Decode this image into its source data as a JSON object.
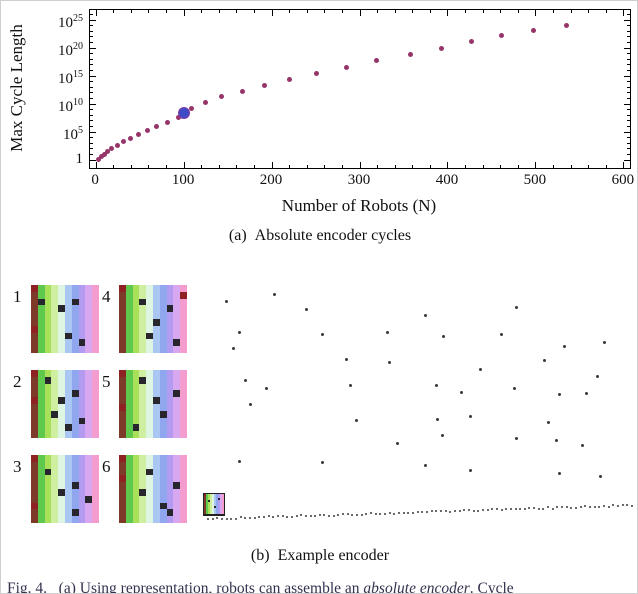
{
  "page": {
    "caption_a": "(a)  Absolute encoder cycles",
    "caption_b": "(b)  Example encoder",
    "fig_caption": {
      "prefix": "Fig. 4.   (a) Using representation, robots can assemble an ",
      "italic": "absolute encoder",
      "suffix": ". Cycle"
    }
  },
  "chart_data": {
    "type": "scatter",
    "title": "",
    "xlabel": "Number of Robots (N)",
    "ylabel": "Max Cycle Length",
    "y_scale": "log10",
    "grid": false,
    "legend": "none",
    "xlim": [
      -7,
      607
    ],
    "ylog_lim": [
      -1.4,
      26.8
    ],
    "x_ticks": [
      0,
      100,
      200,
      300,
      400,
      500,
      600
    ],
    "x_minor_step": 20,
    "y_minor_step": 1,
    "y_ticks": [
      {
        "log": 0,
        "base": "1",
        "exp": ""
      },
      {
        "log": 5,
        "base": "10",
        "exp": "5"
      },
      {
        "log": 10,
        "base": "10",
        "exp": "10"
      },
      {
        "log": 15,
        "base": "10",
        "exp": "15"
      },
      {
        "log": 20,
        "base": "10",
        "exp": "20"
      },
      {
        "log": 25,
        "base": "10",
        "exp": "25"
      }
    ],
    "axis_color": "#000000",
    "point_color": "#963569",
    "highlight_color": "#3d4cc4",
    "highlight_ring": "#8438a8",
    "points": [
      [
        3,
        0.2
      ],
      [
        6,
        0.6
      ],
      [
        9,
        1.05
      ],
      [
        13,
        1.5
      ],
      [
        18,
        2.05
      ],
      [
        24,
        2.65
      ],
      [
        31,
        3.3
      ],
      [
        39,
        3.95
      ],
      [
        48,
        4.65
      ],
      [
        58,
        5.35
      ],
      [
        69,
        6.05
      ],
      [
        81,
        6.8
      ],
      [
        94,
        7.6
      ],
      [
        108,
        9.3
      ],
      [
        124,
        10.3
      ],
      [
        142,
        11.3
      ],
      [
        166,
        12.3
      ],
      [
        191,
        13.3
      ],
      [
        220,
        14.4
      ],
      [
        251,
        15.5
      ],
      [
        285,
        16.6
      ],
      [
        319,
        17.7
      ],
      [
        357,
        18.9
      ],
      [
        393,
        19.9
      ],
      [
        427,
        21.1
      ],
      [
        461,
        22.3
      ],
      [
        497,
        23.1
      ],
      [
        535,
        24.0
      ]
    ],
    "highlight_point": {
      "x": 100,
      "log10_y": 8.4
    }
  },
  "encoder_tiles": {
    "grid_size": 10,
    "palette": [
      "#7e3a28",
      "#5fc94d",
      "#a9e059",
      "#ceefa0",
      "#def5e4",
      "#aac7f3",
      "#90a7ef",
      "#b29bf1",
      "#d7a7ef",
      "#f59ccf"
    ],
    "dark_color": "#26262c",
    "red_color": "#8e2222",
    "tiles": [
      {
        "label": "1",
        "red_cells": [
          [
            0,
            0
          ],
          [
            6,
            0
          ]
        ],
        "dark_cells": [
          [
            2,
            1
          ],
          [
            3,
            4
          ],
          [
            2,
            6
          ],
          [
            7,
            5
          ],
          [
            8,
            7
          ]
        ]
      },
      {
        "label": "2",
        "red_cells": [
          [
            0,
            0
          ],
          [
            4,
            0
          ]
        ],
        "dark_cells": [
          [
            1,
            2
          ],
          [
            4,
            4
          ],
          [
            6,
            3
          ],
          [
            3,
            6
          ],
          [
            7,
            7
          ],
          [
            8,
            5
          ]
        ]
      },
      {
        "label": "3",
        "red_cells": [
          [
            0,
            0
          ],
          [
            7,
            0
          ]
        ],
        "dark_cells": [
          [
            2,
            2
          ],
          [
            5,
            4
          ],
          [
            4,
            6
          ],
          [
            8,
            6
          ],
          [
            6,
            8
          ]
        ]
      },
      {
        "label": "4",
        "red_cells": [
          [
            0,
            0
          ],
          [
            1,
            9
          ]
        ],
        "dark_cells": [
          [
            2,
            3
          ],
          [
            5,
            5
          ],
          [
            3,
            7
          ],
          [
            7,
            4
          ],
          [
            8,
            8
          ]
        ]
      },
      {
        "label": "5",
        "red_cells": [
          [
            0,
            0
          ],
          [
            5,
            0
          ]
        ],
        "dark_cells": [
          [
            1,
            3
          ],
          [
            4,
            5
          ],
          [
            6,
            6
          ],
          [
            3,
            8
          ],
          [
            8,
            2
          ]
        ]
      },
      {
        "label": "6",
        "red_cells": [
          [
            0,
            0
          ],
          [
            3,
            0
          ]
        ],
        "dark_cells": [
          [
            2,
            4
          ],
          [
            5,
            3
          ],
          [
            7,
            6
          ],
          [
            4,
            8
          ],
          [
            8,
            7
          ]
        ]
      }
    ]
  },
  "dot_field": {
    "seed": 42,
    "dot_color": "#3a3a3a",
    "upper": {
      "cols": 10,
      "rows": 7,
      "keep": 0.62
    },
    "baseline": {
      "count": 92,
      "y_start": 233,
      "y_end": 219.5
    },
    "mini_tile": {
      "red_cells": [
        [
          0,
          0
        ]
      ],
      "dark_cells": [
        [
          3,
          2
        ],
        [
          6,
          5
        ],
        [
          2,
          7
        ]
      ]
    }
  }
}
